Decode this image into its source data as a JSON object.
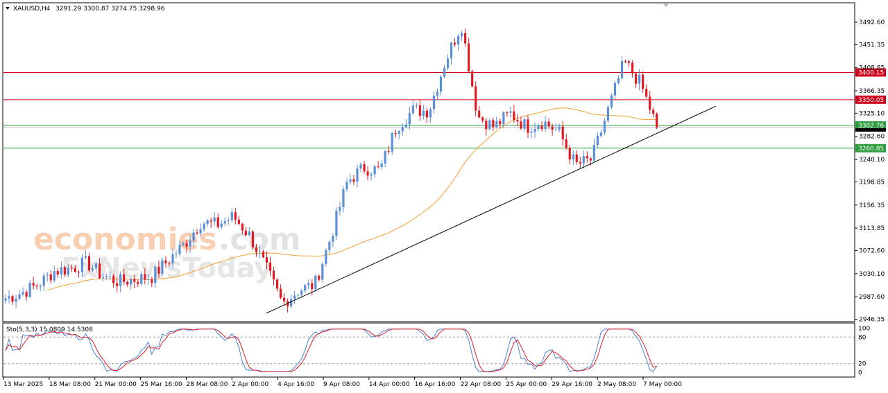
{
  "header": {
    "title": "XAUUSD,H4",
    "ohlc": "3291.29 3300.87 3274.75 3298.96"
  },
  "stochastic": {
    "label": "Sto(5,3,3) 15.0809 14.5308",
    "levels": [
      100,
      80,
      20,
      0
    ]
  },
  "watermark": {
    "brand": "economies",
    "brand_tail": ".com",
    "sub": "FxNewsToday"
  },
  "colors": {
    "bull": "#5b8fd9",
    "bear": "#e01b24",
    "ma": "#f5a030",
    "resistance": "#d0021b",
    "support": "#2e9e3e",
    "trendline": "#000000",
    "stoch_main": "#4a7fd6",
    "stoch_signal": "#e01b24"
  },
  "chart_data": {
    "type": "candlestick",
    "symbol": "XAUUSD",
    "timeframe": "H4",
    "ylim": [
      2946.35,
      3520
    ],
    "y_ticks": [
      "3492.60",
      "3451.35",
      "3408.85",
      "3366.35",
      "3325.10",
      "3282.60",
      "3240.10",
      "3198.85",
      "3156.35",
      "3113.85",
      "3072.60",
      "3030.10",
      "2987.60",
      "2946.35"
    ],
    "x_ticks": [
      "13 Mar 2025",
      "18 Mar 08:00",
      "21 Mar 00:00",
      "25 Mar 16:00",
      "28 Mar 08:00",
      "2 Apr 00:00",
      "4 Apr 16:00",
      "9 Apr 08:00",
      "14 Apr 00:00",
      "16 Apr 16:00",
      "22 Apr 08:00",
      "25 Apr 00:00",
      "29 Apr 16:00",
      "2 May 08:00",
      "7 May 00:00"
    ],
    "horizontal_levels": [
      {
        "value": 3400.15,
        "label": "3400.15",
        "kind": "resistance"
      },
      {
        "value": 3350.05,
        "label": "3350.05",
        "kind": "resistance"
      },
      {
        "value": 3302.76,
        "label": "3302.76",
        "kind": "support"
      },
      {
        "value": 3260.85,
        "label": "3260.85",
        "kind": "support"
      }
    ],
    "current_price": 3298.96,
    "trendline": [
      {
        "date": "4 Apr",
        "price": 2957
      },
      {
        "date": "8 May",
        "price": 3338
      }
    ],
    "price_path": [
      {
        "date": "13 Mar",
        "price": 2985
      },
      {
        "date": "14 Mar",
        "price": 2995
      },
      {
        "date": "17 Mar",
        "price": 3010
      },
      {
        "date": "18 Mar",
        "price": 3035
      },
      {
        "date": "19 Mar",
        "price": 3040
      },
      {
        "date": "20 Mar",
        "price": 3050
      },
      {
        "date": "21 Mar",
        "price": 3025
      },
      {
        "date": "24 Mar",
        "price": 3015
      },
      {
        "date": "25 Mar",
        "price": 3020
      },
      {
        "date": "26 Mar",
        "price": 3025
      },
      {
        "date": "27 Mar",
        "price": 3055
      },
      {
        "date": "28 Mar",
        "price": 3085
      },
      {
        "date": "31 Mar",
        "price": 3125
      },
      {
        "date": "1 Apr",
        "price": 3120
      },
      {
        "date": "2 Apr",
        "price": 3135
      },
      {
        "date": "3 Apr",
        "price": 3100
      },
      {
        "date": "4 Apr",
        "price": 3040
      },
      {
        "date": "7 Apr",
        "price": 2975
      },
      {
        "date": "8 Apr",
        "price": 3000
      },
      {
        "date": "9 Apr",
        "price": 3010
      },
      {
        "date": "10 Apr",
        "price": 3100
      },
      {
        "date": "11 Apr",
        "price": 3200
      },
      {
        "date": "14 Apr",
        "price": 3225
      },
      {
        "date": "15 Apr",
        "price": 3220
      },
      {
        "date": "16 Apr",
        "price": 3300
      },
      {
        "date": "17 Apr",
        "price": 3330
      },
      {
        "date": "18 Apr",
        "price": 3330
      },
      {
        "date": "21 Apr",
        "price": 3420
      },
      {
        "date": "22 Apr",
        "price": 3490
      },
      {
        "date": "23 Apr",
        "price": 3320
      },
      {
        "date": "24 Apr",
        "price": 3300
      },
      {
        "date": "25 Apr",
        "price": 3325
      },
      {
        "date": "28 Apr",
        "price": 3300
      },
      {
        "date": "29 Apr",
        "price": 3310
      },
      {
        "date": "30 Apr",
        "price": 3290
      },
      {
        "date": "1 May",
        "price": 3230
      },
      {
        "date": "2 May",
        "price": 3240
      },
      {
        "date": "5 May",
        "price": 3330
      },
      {
        "date": "6 May",
        "price": 3420
      },
      {
        "date": "7 May",
        "price": 3380
      },
      {
        "date": "8 May",
        "price": 3300
      }
    ]
  }
}
